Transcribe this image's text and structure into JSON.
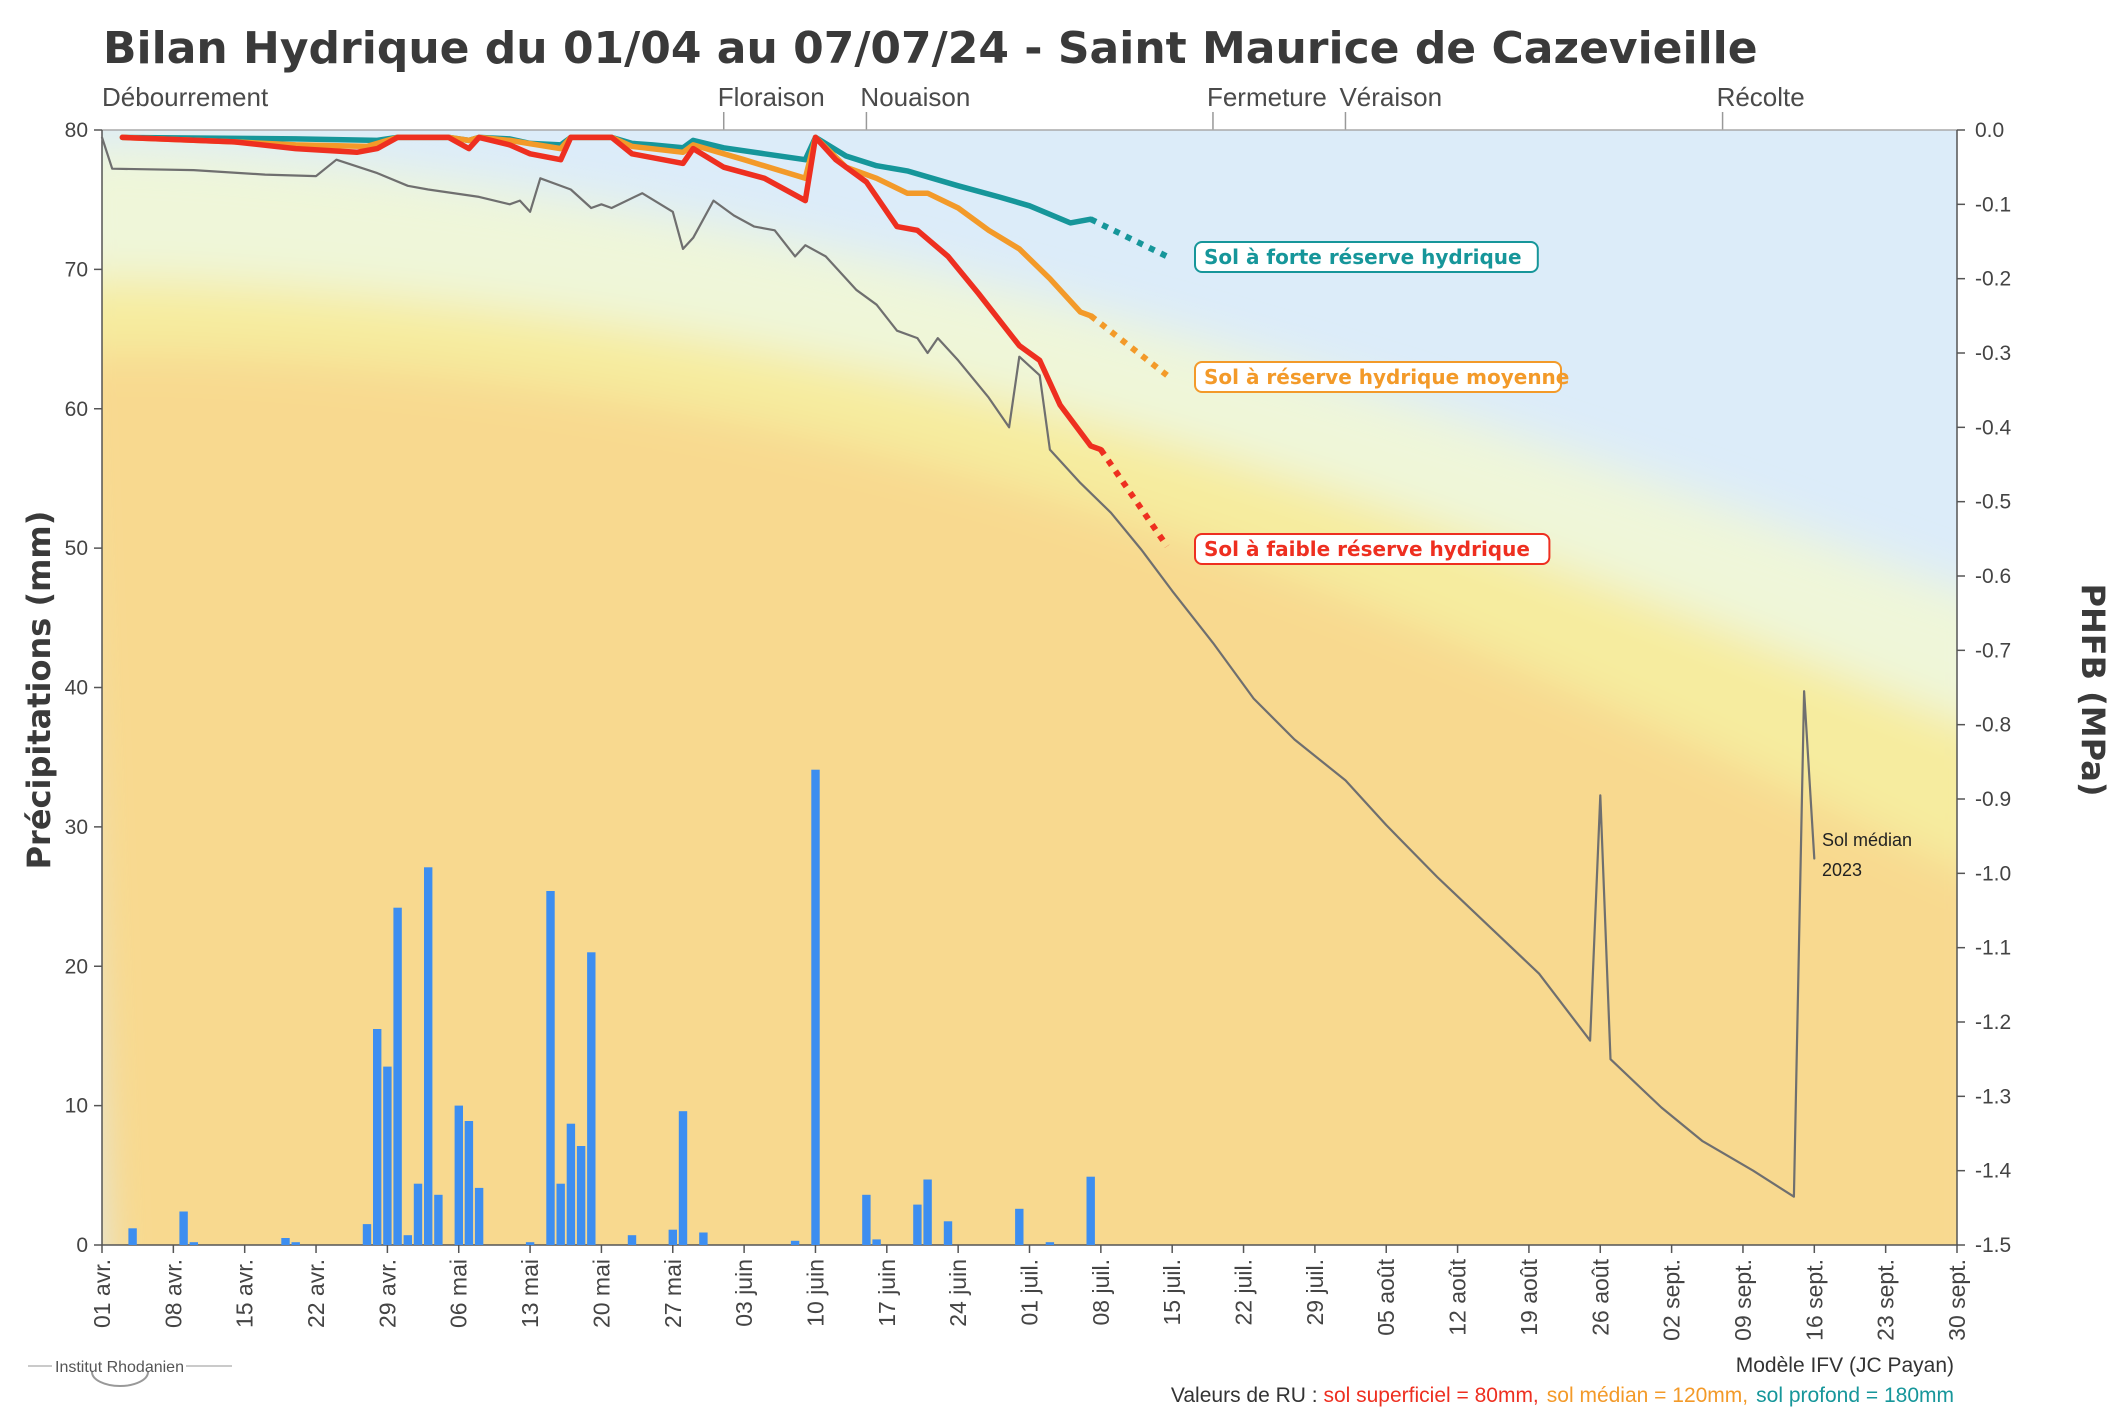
{
  "title": "Bilan Hydrique du 01/04 au 07/07/24 - Saint Maurice de Cazevieille",
  "stages": [
    {
      "label": "Débourrement",
      "date": "2024-04-01"
    },
    {
      "label": "Floraison",
      "date": "2024-06-01"
    },
    {
      "label": "Nouaison",
      "date": "2024-06-15"
    },
    {
      "label": "Fermeture",
      "date": "2024-07-19"
    },
    {
      "label": "Véraison",
      "date": "2024-08-01"
    },
    {
      "label": "Récolte",
      "date": "2024-09-07"
    }
  ],
  "chart_data": {
    "type": "bar",
    "xlim": [
      "2024-04-01",
      "2024-09-30"
    ],
    "x_ticks": [
      "01 avr.",
      "08 avr.",
      "15 avr.",
      "22 avr.",
      "29 avr.",
      "06 mai",
      "13 mai",
      "20 mai",
      "27 mai",
      "03 juin",
      "10 juin",
      "17 juin",
      "24 juin",
      "01 juil.",
      "08 juil.",
      "15 juil.",
      "22 juil.",
      "29 juil.",
      "05 août",
      "12 août",
      "19 août",
      "26 août",
      "02 sept.",
      "09 sept.",
      "16 sept.",
      "23 sept.",
      "30 sept."
    ],
    "y_left": {
      "label": "Précipitations (mm)",
      "lim": [
        0,
        80
      ],
      "ticks": [
        0,
        10,
        20,
        30,
        40,
        50,
        60,
        70,
        80
      ]
    },
    "y_right": {
      "label": "PHFB (MPa)",
      "lim": [
        -1.5,
        0
      ],
      "ticks": [
        "0.0",
        "-0.1",
        "-0.2",
        "-0.3",
        "-0.4",
        "-0.5",
        "-0.6",
        "-0.7",
        "-0.8",
        "-0.9",
        "-1.0",
        "-1.1",
        "-1.2",
        "-1.3",
        "-1.4",
        "-1.5"
      ]
    },
    "precipitation": {
      "color": "#3d8ef0",
      "dates": [
        "2024-04-04",
        "2024-04-09",
        "2024-04-10",
        "2024-04-19",
        "2024-04-20",
        "2024-04-27",
        "2024-04-28",
        "2024-04-29",
        "2024-04-30",
        "2024-05-01",
        "2024-05-02",
        "2024-05-03",
        "2024-05-04",
        "2024-05-06",
        "2024-05-07",
        "2024-05-08",
        "2024-05-13",
        "2024-05-15",
        "2024-05-16",
        "2024-05-17",
        "2024-05-18",
        "2024-05-19",
        "2024-05-23",
        "2024-05-27",
        "2024-05-28",
        "2024-05-30",
        "2024-06-08",
        "2024-06-10",
        "2024-06-15",
        "2024-06-16",
        "2024-06-20",
        "2024-06-21",
        "2024-06-23",
        "2024-06-30",
        "2024-07-03",
        "2024-07-07"
      ],
      "values": [
        1.2,
        2.4,
        0.2,
        0.5,
        0.2,
        1.5,
        15.5,
        12.8,
        24.2,
        0.7,
        4.4,
        27.1,
        3.6,
        10.0,
        8.9,
        4.1,
        0.2,
        25.4,
        4.4,
        8.7,
        7.1,
        21.0,
        0.7,
        1.1,
        9.6,
        0.9,
        0.3,
        34.1,
        3.6,
        0.4,
        2.9,
        4.7,
        1.7,
        2.6,
        0.2,
        4.9
      ]
    },
    "series": [
      {
        "name": "Sol à forte réserve hydrique",
        "color": "#16969a",
        "dashed_end": -0.17,
        "points": [
          [
            "2024-04-03",
            -0.01
          ],
          [
            "2024-04-20",
            -0.012
          ],
          [
            "2024-04-28",
            -0.014
          ],
          [
            "2024-04-30",
            -0.01
          ],
          [
            "2024-05-05",
            -0.01
          ],
          [
            "2024-05-07",
            -0.014
          ],
          [
            "2024-05-08",
            -0.01
          ],
          [
            "2024-05-11",
            -0.012
          ],
          [
            "2024-05-13",
            -0.018
          ],
          [
            "2024-05-16",
            -0.02
          ],
          [
            "2024-05-17",
            -0.01
          ],
          [
            "2024-05-21",
            -0.01
          ],
          [
            "2024-05-23",
            -0.018
          ],
          [
            "2024-05-25",
            -0.02
          ],
          [
            "2024-05-28",
            -0.024
          ],
          [
            "2024-05-29",
            -0.014
          ],
          [
            "2024-06-01",
            -0.024
          ],
          [
            "2024-06-05",
            -0.032
          ],
          [
            "2024-06-09",
            -0.04
          ],
          [
            "2024-06-10",
            -0.01
          ],
          [
            "2024-06-13",
            -0.035
          ],
          [
            "2024-06-16",
            -0.048
          ],
          [
            "2024-06-19",
            -0.055
          ],
          [
            "2024-06-24",
            -0.075
          ],
          [
            "2024-06-28",
            -0.09
          ],
          [
            "2024-07-01",
            -0.102
          ],
          [
            "2024-07-05",
            -0.125
          ],
          [
            "2024-07-07",
            -0.12
          ]
        ]
      },
      {
        "name": "Sol à réserve hydrique moyenne",
        "color": "#f39a29",
        "dashed_end": -0.33,
        "points": [
          [
            "2024-04-03",
            -0.01
          ],
          [
            "2024-04-14",
            -0.016
          ],
          [
            "2024-04-20",
            -0.02
          ],
          [
            "2024-04-27",
            -0.022
          ],
          [
            "2024-04-30",
            -0.01
          ],
          [
            "2024-05-05",
            -0.01
          ],
          [
            "2024-05-07",
            -0.014
          ],
          [
            "2024-05-08",
            -0.01
          ],
          [
            "2024-05-11",
            -0.014
          ],
          [
            "2024-05-16",
            -0.025
          ],
          [
            "2024-05-17",
            -0.01
          ],
          [
            "2024-05-21",
            -0.01
          ],
          [
            "2024-05-23",
            -0.022
          ],
          [
            "2024-05-28",
            -0.03
          ],
          [
            "2024-05-29",
            -0.02
          ],
          [
            "2024-06-03",
            -0.04
          ],
          [
            "2024-06-09",
            -0.065
          ],
          [
            "2024-06-10",
            -0.01
          ],
          [
            "2024-06-13",
            -0.05
          ],
          [
            "2024-06-16",
            -0.065
          ],
          [
            "2024-06-19",
            -0.085
          ],
          [
            "2024-06-21",
            -0.085
          ],
          [
            "2024-06-24",
            -0.105
          ],
          [
            "2024-06-27",
            -0.135
          ],
          [
            "2024-06-30",
            -0.16
          ],
          [
            "2024-07-03",
            -0.2
          ],
          [
            "2024-07-06",
            -0.245
          ],
          [
            "2024-07-07",
            -0.25
          ]
        ]
      },
      {
        "name": "Sol à faible réserve hydrique",
        "color": "#ee2f20",
        "dashed_end": -0.56,
        "points": [
          [
            "2024-04-03",
            -0.01
          ],
          [
            "2024-04-14",
            -0.016
          ],
          [
            "2024-04-20",
            -0.025
          ],
          [
            "2024-04-26",
            -0.03
          ],
          [
            "2024-04-28",
            -0.025
          ],
          [
            "2024-04-30",
            -0.01
          ],
          [
            "2024-05-05",
            -0.01
          ],
          [
            "2024-05-07",
            -0.025
          ],
          [
            "2024-05-08",
            -0.01
          ],
          [
            "2024-05-11",
            -0.02
          ],
          [
            "2024-05-13",
            -0.032
          ],
          [
            "2024-05-16",
            -0.04
          ],
          [
            "2024-05-17",
            -0.01
          ],
          [
            "2024-05-21",
            -0.01
          ],
          [
            "2024-05-23",
            -0.032
          ],
          [
            "2024-05-28",
            -0.045
          ],
          [
            "2024-05-29",
            -0.025
          ],
          [
            "2024-06-01",
            -0.05
          ],
          [
            "2024-06-05",
            -0.065
          ],
          [
            "2024-06-09",
            -0.095
          ],
          [
            "2024-06-10",
            -0.01
          ],
          [
            "2024-06-12",
            -0.04
          ],
          [
            "2024-06-15",
            -0.07
          ],
          [
            "2024-06-18",
            -0.13
          ],
          [
            "2024-06-20",
            -0.135
          ],
          [
            "2024-06-23",
            -0.17
          ],
          [
            "2024-06-26",
            -0.22
          ],
          [
            "2024-06-30",
            -0.29
          ],
          [
            "2024-07-02",
            -0.31
          ],
          [
            "2024-07-04",
            -0.37
          ],
          [
            "2024-07-07",
            -0.425
          ],
          [
            "2024-07-08",
            -0.43
          ]
        ]
      },
      {
        "name": "Sol médian 2023",
        "color": "#6f6f6f",
        "points": [
          [
            "2024-04-01",
            -0.01
          ],
          [
            "2024-04-02",
            -0.052
          ],
          [
            "2024-04-10",
            -0.054
          ],
          [
            "2024-04-17",
            -0.06
          ],
          [
            "2024-04-22",
            -0.062
          ],
          [
            "2024-04-24",
            -0.04
          ],
          [
            "2024-04-28",
            -0.058
          ],
          [
            "2024-05-01",
            -0.075
          ],
          [
            "2024-05-03",
            -0.08
          ],
          [
            "2024-05-08",
            -0.09
          ],
          [
            "2024-05-11",
            -0.1
          ],
          [
            "2024-05-12",
            -0.095
          ],
          [
            "2024-05-13",
            -0.11
          ],
          [
            "2024-05-14",
            -0.065
          ],
          [
            "2024-05-17",
            -0.08
          ],
          [
            "2024-05-19",
            -0.105
          ],
          [
            "2024-05-20",
            -0.1
          ],
          [
            "2024-05-21",
            -0.105
          ],
          [
            "2024-05-24",
            -0.085
          ],
          [
            "2024-05-27",
            -0.11
          ],
          [
            "2024-05-28",
            -0.16
          ],
          [
            "2024-05-29",
            -0.145
          ],
          [
            "2024-05-31",
            -0.095
          ],
          [
            "2024-06-02",
            -0.115
          ],
          [
            "2024-06-04",
            -0.13
          ],
          [
            "2024-06-06",
            -0.135
          ],
          [
            "2024-06-08",
            -0.17
          ],
          [
            "2024-06-09",
            -0.155
          ],
          [
            "2024-06-11",
            -0.17
          ],
          [
            "2024-06-14",
            -0.215
          ],
          [
            "2024-06-16",
            -0.235
          ],
          [
            "2024-06-18",
            -0.27
          ],
          [
            "2024-06-20",
            -0.28
          ],
          [
            "2024-06-21",
            -0.3
          ],
          [
            "2024-06-22",
            -0.28
          ],
          [
            "2024-06-24",
            -0.31
          ],
          [
            "2024-06-27",
            -0.36
          ],
          [
            "2024-06-29",
            -0.4
          ],
          [
            "2024-06-30",
            -0.305
          ],
          [
            "2024-07-02",
            -0.33
          ],
          [
            "2024-07-03",
            -0.43
          ],
          [
            "2024-07-06",
            -0.475
          ],
          [
            "2024-07-09",
            -0.515
          ],
          [
            "2024-07-12",
            -0.565
          ],
          [
            "2024-07-15",
            -0.62
          ],
          [
            "2024-07-19",
            -0.69
          ],
          [
            "2024-07-23",
            -0.765
          ],
          [
            "2024-07-27",
            -0.82
          ],
          [
            "2024-08-01",
            -0.875
          ],
          [
            "2024-08-05",
            -0.935
          ],
          [
            "2024-08-10",
            -1.005
          ],
          [
            "2024-08-15",
            -1.07
          ],
          [
            "2024-08-20",
            -1.135
          ],
          [
            "2024-08-25",
            -1.225
          ],
          [
            "2024-08-26",
            -0.895
          ],
          [
            "2024-08-27",
            -1.25
          ],
          [
            "2024-09-01",
            -1.315
          ],
          [
            "2024-09-05",
            -1.36
          ],
          [
            "2024-09-10",
            -1.4
          ],
          [
            "2024-09-14",
            -1.435
          ],
          [
            "2024-09-15",
            -0.755
          ],
          [
            "2024-09-16",
            -0.98
          ]
        ]
      }
    ],
    "annotation": {
      "line1": "Sol médian",
      "line2": "2023"
    }
  },
  "footer": {
    "model": "Modèle IFV (JC Payan)",
    "ru_prefix": "Valeurs de RU : ",
    "ru_red": "sol superficiel = 80mm,",
    "ru_orange": "sol médian = 120mm,",
    "ru_teal": "sol profond = 180mm",
    "logo": "Institut Rhodanien"
  },
  "colors": {
    "bg_blue": "#dcecf9",
    "bg_pale": "#f1f7d6",
    "bg_yellow": "#f6ec9f",
    "bg_orange": "#f8d98f",
    "red": "#ee2f20",
    "orange": "#f39a29",
    "teal": "#16969a",
    "bar": "#3d8ef0"
  }
}
